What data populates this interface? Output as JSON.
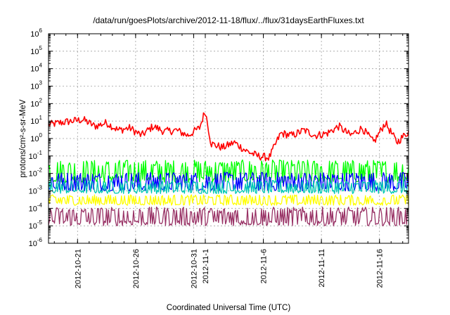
{
  "chart_data": {
    "type": "line",
    "title": "/data/run/goesPlots/archive/2012-11-18/flux/../flux/31daysEarthFluxes.txt",
    "xlabel": "Coordinated Universal Time (UTC)",
    "ylabel": "protons/cm²-s-sr-MeV",
    "yscale": "log",
    "ylim": [
      1e-06,
      1000000.0
    ],
    "xlim": [
      "2012-10-18T12:00",
      "2012-11-18T12:00"
    ],
    "grid": true,
    "y_ticks": [
      {
        "base": "10",
        "exp": "-6",
        "value": 1e-06
      },
      {
        "base": "10",
        "exp": "-5",
        "value": 1e-05
      },
      {
        "base": "10",
        "exp": "-4",
        "value": 0.0001
      },
      {
        "base": "10",
        "exp": "-3",
        "value": 0.001
      },
      {
        "base": "10",
        "exp": "-2",
        "value": 0.01
      },
      {
        "base": "10",
        "exp": "-1",
        "value": 0.1
      },
      {
        "base": "10",
        "exp": "0",
        "value": 1
      },
      {
        "base": "10",
        "exp": "1",
        "value": 10
      },
      {
        "base": "10",
        "exp": "2",
        "value": 100
      },
      {
        "base": "10",
        "exp": "3",
        "value": 1000
      },
      {
        "base": "10",
        "exp": "4",
        "value": 10000
      },
      {
        "base": "10",
        "exp": "5",
        "value": 100000
      },
      {
        "base": "10",
        "exp": "6",
        "value": 1000000
      }
    ],
    "x_ticks": [
      {
        "date": "2012-10-21",
        "labels": [
          "2012-10-21"
        ]
      },
      {
        "date": "2012-10-26",
        "labels": [
          "2012-10-26"
        ]
      },
      {
        "date": "2012-10-31",
        "labels": [
          "2012-10-31"
        ]
      },
      {
        "date": "2012-11-01",
        "labels": [
          "2012-11-1"
        ]
      },
      {
        "date": "2012-11-06",
        "labels": [
          "2012-11-6"
        ]
      },
      {
        "date": "2012-11-11",
        "labels": [
          "2012-11-11"
        ]
      },
      {
        "date": "2012-11-16",
        "labels": [
          "2012-11-16"
        ]
      }
    ],
    "series": [
      {
        "color": "#ff0000",
        "x": [
          "2012-10-18T12:00",
          "2012-10-19T12:00",
          "2012-10-20T12:00",
          "2012-10-21T12:00",
          "2012-10-22T12:00",
          "2012-10-23T12:00",
          "2012-10-24T12:00",
          "2012-10-25T12:00",
          "2012-10-26T12:00",
          "2012-10-27T12:00",
          "2012-10-28T12:00",
          "2012-10-29T12:00",
          "2012-10-30T12:00",
          "2012-10-31T12:00",
          "2012-11-01T00:00",
          "2012-11-01T12:00",
          "2012-11-02T12:00",
          "2012-11-03T12:00",
          "2012-11-04T12:00",
          "2012-11-05T12:00",
          "2012-11-06T12:00",
          "2012-11-07T12:00",
          "2012-11-08T12:00",
          "2012-11-09T12:00",
          "2012-11-10T12:00",
          "2012-11-11T12:00",
          "2012-11-12T12:00",
          "2012-11-13T12:00",
          "2012-11-14T12:00",
          "2012-11-15T12:00",
          "2012-11-16T12:00",
          "2012-11-17T12:00",
          "2012-11-18T12:00"
        ],
        "y": [
          6,
          8,
          10,
          12,
          5,
          8,
          3,
          4,
          1.5,
          5,
          2.5,
          3,
          1.5,
          4,
          40,
          0.5,
          0.3,
          0.6,
          0.2,
          0.1,
          0.08,
          2,
          1.5,
          3,
          1.5,
          2,
          5,
          1.5,
          4,
          0.6,
          8,
          0.6,
          2.5
        ],
        "variability": 0.45
      },
      {
        "color": "#00ff00",
        "band": [
          0.003,
          0.06
        ]
      },
      {
        "color": "#0000ff",
        "band": [
          0.001,
          0.012
        ]
      },
      {
        "color": "#00c8b4",
        "band": [
          0.0007,
          0.004
        ]
      },
      {
        "color": "#ffff00",
        "band": [
          0.00015,
          0.0006
        ]
      },
      {
        "color": "#993366",
        "band": [
          1e-05,
          0.00012
        ]
      }
    ]
  }
}
